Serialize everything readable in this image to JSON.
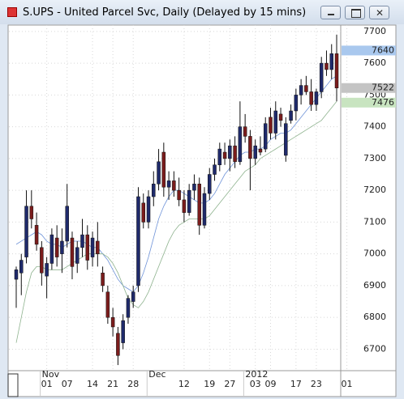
{
  "window": {
    "title": "S.UPS - United Parcel Svc, Daily (Delayed by 15 mins)"
  },
  "chart_data": {
    "type": "candlestick",
    "open": [
      6920,
      6940,
      6990,
      7150,
      7090,
      7020,
      6930,
      6970,
      7050,
      7000,
      7040,
      7050,
      6970,
      7020,
      7060,
      6990,
      7040,
      6940,
      6880,
      6800,
      6750,
      6720,
      6800,
      6850,
      6900,
      7160,
      7100,
      7180,
      7220,
      7320,
      7210,
      7230,
      7200,
      7170,
      7130,
      7200,
      7220,
      7090,
      7190,
      7250,
      7280,
      7320,
      7300,
      7340,
      7290,
      7400,
      7370,
      7300,
      7330,
      7330,
      7430,
      7380,
      7440,
      7310,
      7420,
      7450,
      7500,
      7530,
      7510,
      7470,
      7510,
      7600,
      7580,
      7630
    ],
    "high": [
      6960,
      7000,
      7200,
      7200,
      7130,
      7040,
      6990,
      7080,
      7090,
      7080,
      7220,
      7070,
      7040,
      7110,
      7090,
      7070,
      7100,
      6960,
      6900,
      6830,
      6770,
      6810,
      6870,
      6900,
      7210,
      7190,
      7200,
      7260,
      7330,
      7350,
      7260,
      7260,
      7240,
      7200,
      7220,
      7250,
      7240,
      7210,
      7270,
      7300,
      7350,
      7350,
      7360,
      7370,
      7480,
      7440,
      7390,
      7360,
      7370,
      7430,
      7460,
      7480,
      7460,
      7430,
      7470,
      7520,
      7550,
      7560,
      7550,
      7520,
      7620,
      7640,
      7660,
      7690
    ],
    "low": [
      6830,
      6870,
      6970,
      7080,
      7010,
      6900,
      6860,
      6950,
      6960,
      6940,
      7020,
      6920,
      6940,
      6990,
      6950,
      6960,
      6960,
      6880,
      6780,
      6740,
      6650,
      6700,
      6780,
      6830,
      6880,
      7080,
      7080,
      7150,
      7200,
      7180,
      7170,
      7180,
      7150,
      7100,
      7120,
      7170,
      7060,
      7080,
      7170,
      7230,
      7260,
      7280,
      7260,
      7270,
      7280,
      7350,
      7200,
      7280,
      7310,
      7320,
      7360,
      7360,
      7400,
      7290,
      7410,
      7420,
      7470,
      7500,
      7450,
      7450,
      7490,
      7560,
      7550,
      7480
    ],
    "close": [
      6950,
      6980,
      7150,
      7110,
      7030,
      6940,
      6970,
      7060,
      6990,
      7040,
      7150,
      6960,
      7020,
      7060,
      6980,
      7050,
      7000,
      6900,
      6800,
      6770,
      6680,
      6790,
      6860,
      6880,
      7180,
      7100,
      7180,
      7220,
      7290,
      7210,
      7230,
      7200,
      7170,
      7130,
      7200,
      7220,
      7090,
      7190,
      7250,
      7280,
      7330,
      7300,
      7340,
      7290,
      7400,
      7370,
      7300,
      7340,
      7320,
      7410,
      7380,
      7450,
      7420,
      7410,
      7450,
      7500,
      7530,
      7510,
      7470,
      7510,
      7600,
      7580,
      7630,
      7522
    ],
    "up_color": "#1f2a6b",
    "down_color": "#7a1c1c",
    "series": [
      {
        "color": "#6f93d8",
        "values": [
          7030,
          7040,
          7050,
          7060,
          7070,
          7060,
          7040,
          7030,
          7030,
          7020,
          7030,
          7040,
          7040,
          7040,
          7030,
          7020,
          7020,
          7000,
          6980,
          6950,
          6920,
          6900,
          6890,
          6880,
          6900,
          6940,
          6990,
          7050,
          7110,
          7150,
          7180,
          7200,
          7200,
          7190,
          7180,
          7170,
          7160,
          7160,
          7170,
          7190,
          7220,
          7250,
          7270,
          7290,
          7310,
          7320,
          7320,
          7330,
          7330,
          7340,
          7360,
          7370,
          7380,
          7380,
          7390,
          7410,
          7430,
          7450,
          7470,
          7490,
          7510,
          7530,
          7550,
          7560
        ]
      },
      {
        "color": "#8fb38f",
        "values": [
          6720,
          6800,
          6880,
          6940,
          6960,
          6960,
          6950,
          6950,
          6950,
          6950,
          6960,
          6970,
          6980,
          6990,
          7000,
          7000,
          7000,
          7000,
          6990,
          6970,
          6940,
          6900,
          6860,
          6840,
          6830,
          6850,
          6880,
          6920,
          6960,
          7000,
          7040,
          7070,
          7090,
          7100,
          7110,
          7110,
          7110,
          7110,
          7120,
          7140,
          7160,
          7180,
          7200,
          7220,
          7240,
          7260,
          7270,
          7280,
          7300,
          7310,
          7320,
          7330,
          7340,
          7350,
          7360,
          7370,
          7380,
          7390,
          7400,
          7410,
          7420,
          7440,
          7460,
          7480
        ]
      }
    ],
    "ylim": [
      6640,
      7720
    ],
    "yticks": [
      6700,
      6800,
      6900,
      7000,
      7100,
      7200,
      7300,
      7400,
      7500,
      7600,
      7700
    ],
    "xticks": [
      {
        "value": 6,
        "label": "01"
      },
      {
        "value": 10,
        "label": "07"
      },
      {
        "value": 15,
        "label": "14"
      },
      {
        "value": 19,
        "label": "21"
      },
      {
        "value": 23,
        "label": "28"
      },
      {
        "value": 33,
        "label": "12"
      },
      {
        "value": 38,
        "label": "19"
      },
      {
        "value": 42,
        "label": "27"
      },
      {
        "value": 47,
        "label": "03"
      },
      {
        "value": 50,
        "label": "09"
      },
      {
        "value": 55,
        "label": "17"
      },
      {
        "value": 59,
        "label": "23"
      },
      {
        "value": 65,
        "label": "01"
      }
    ],
    "months": [
      {
        "value": 6,
        "label": "Nov"
      },
      {
        "value": 27,
        "label": "Dec"
      },
      {
        "value": 46,
        "label": "2012"
      }
    ],
    "markers": [
      {
        "value": 7640,
        "color": "#a9c8ee"
      },
      {
        "value": 7522,
        "color": "#c4c4c4"
      },
      {
        "value": 7476,
        "color": "#c8e4c0"
      }
    ],
    "grid": true
  }
}
